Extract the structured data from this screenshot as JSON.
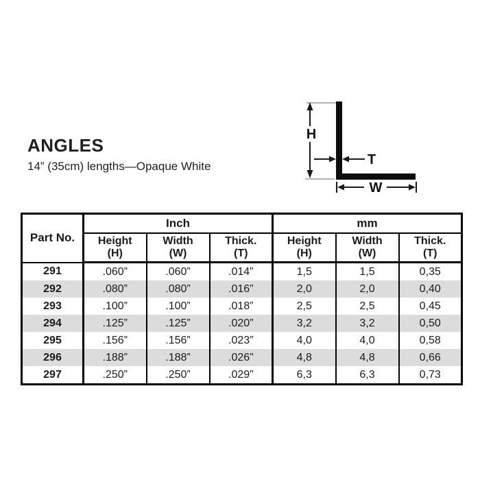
{
  "header": {
    "title": "ANGLES",
    "subtitle": "14” (35cm) lengths—Opaque White"
  },
  "diagram": {
    "labels": {
      "height": "H",
      "thickness": "T",
      "width": "W"
    },
    "shape_color": "#0d0d0d",
    "label_color": "#111111",
    "extension_line_color": "#999999"
  },
  "table": {
    "border_color": "#000000",
    "alt_row_color": "#dcdcdc",
    "part_no_label": "Part No.",
    "sections": [
      {
        "label": "Inch"
      },
      {
        "label": "mm"
      }
    ],
    "columns": [
      {
        "name": "Height",
        "sym": "(H)"
      },
      {
        "name": "Width",
        "sym": "(W)"
      },
      {
        "name": "Thick.",
        "sym": "(T)"
      }
    ],
    "rows": [
      {
        "part": "291",
        "inch": [
          ".060”",
          ".060”",
          ".014”"
        ],
        "mm": [
          "1,5",
          "1,5",
          "0,35"
        ]
      },
      {
        "part": "292",
        "inch": [
          ".080”",
          ".080”",
          ".016”"
        ],
        "mm": [
          "2,0",
          "2,0",
          "0,40"
        ]
      },
      {
        "part": "293",
        "inch": [
          ".100”",
          ".100”",
          ".018”"
        ],
        "mm": [
          "2,5",
          "2,5",
          "0,45"
        ]
      },
      {
        "part": "294",
        "inch": [
          ".125”",
          ".125”",
          ".020”"
        ],
        "mm": [
          "3,2",
          "3,2",
          "0,50"
        ]
      },
      {
        "part": "295",
        "inch": [
          ".156”",
          ".156”",
          ".023”"
        ],
        "mm": [
          "4,0",
          "4,0",
          "0,58"
        ]
      },
      {
        "part": "296",
        "inch": [
          ".188”",
          ".188”",
          ".026”"
        ],
        "mm": [
          "4,8",
          "4,8",
          "0,66"
        ]
      },
      {
        "part": "297",
        "inch": [
          ".250”",
          ".250”",
          ".029”"
        ],
        "mm": [
          "6,3",
          "6,3",
          "0,73"
        ]
      }
    ]
  }
}
